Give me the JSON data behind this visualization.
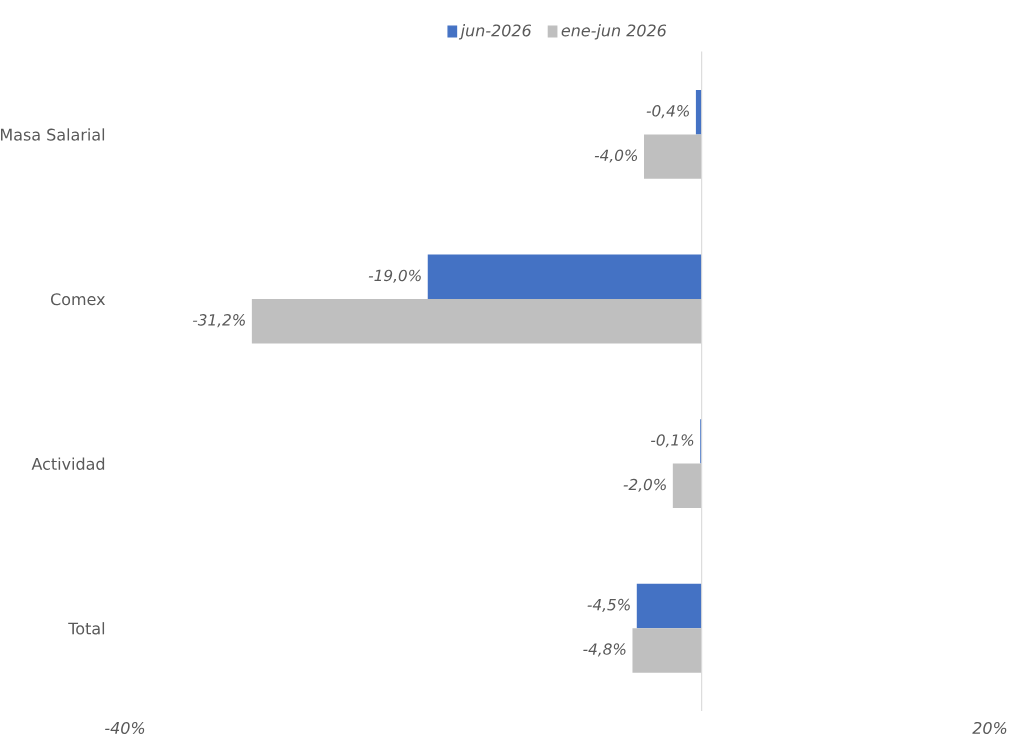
{
  "chart_data": {
    "type": "bar",
    "orientation": "horizontal",
    "categories": [
      "Masa Salarial",
      "Comex",
      "Actividad",
      "Total"
    ],
    "series": [
      {
        "name": "jun-2026",
        "color": "#4472c4",
        "values": [
          -0.4,
          -19.0,
          -0.1,
          -4.5
        ],
        "value_labels": [
          "-0,4%",
          "-19,0%",
          "-0,1%",
          "-4,5%"
        ]
      },
      {
        "name": "ene-jun 2026",
        "color": "#bfbfbf",
        "values": [
          -4.0,
          -31.2,
          -2.0,
          -4.8
        ],
        "value_labels": [
          "-4,0%",
          "-31,2%",
          "-2,0%",
          "-4,8%"
        ]
      }
    ],
    "xlim": [
      -40,
      20
    ],
    "xticks": [
      {
        "value": -40,
        "label": "-40%"
      },
      {
        "value": 20,
        "label": "20%"
      }
    ],
    "grid": false,
    "legend": "top"
  }
}
